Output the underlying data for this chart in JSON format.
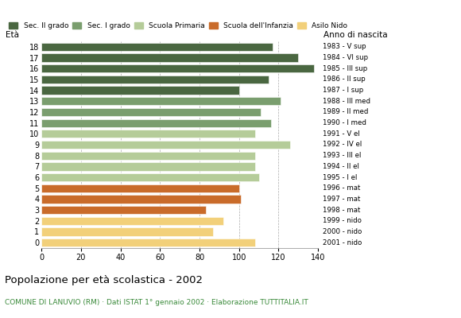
{
  "ages": [
    18,
    17,
    16,
    15,
    14,
    13,
    12,
    11,
    10,
    9,
    8,
    7,
    6,
    5,
    4,
    3,
    2,
    1,
    0
  ],
  "values": [
    117,
    130,
    138,
    115,
    100,
    121,
    111,
    116,
    108,
    126,
    108,
    108,
    110,
    100,
    101,
    83,
    92,
    87,
    108
  ],
  "anno_nascita": [
    "1983 - V sup",
    "1984 - VI sup",
    "1985 - III sup",
    "1986 - II sup",
    "1987 - I sup",
    "1988 - III med",
    "1989 - II med",
    "1990 - I med",
    "1991 - V el",
    "1992 - IV el",
    "1993 - III el",
    "1994 - II el",
    "1995 - I el",
    "1996 - mat",
    "1997 - mat",
    "1998 - mat",
    "1999 - nido",
    "2000 - nido",
    "2001 - nido"
  ],
  "colors": [
    "#4a6741",
    "#4a6741",
    "#4a6741",
    "#4a6741",
    "#4a6741",
    "#7a9e6e",
    "#7a9e6e",
    "#7a9e6e",
    "#b5cc99",
    "#b5cc99",
    "#b5cc99",
    "#b5cc99",
    "#b5cc99",
    "#c96b2a",
    "#c96b2a",
    "#c96b2a",
    "#f2d07a",
    "#f2d07a",
    "#f2d07a"
  ],
  "legend_labels": [
    "Sec. II grado",
    "Sec. I grado",
    "Scuola Primaria",
    "Scuola dell'Infanzia",
    "Asilo Nido"
  ],
  "legend_colors": [
    "#4a6741",
    "#7a9e6e",
    "#b5cc99",
    "#c96b2a",
    "#f2d07a"
  ],
  "title": "Popolazione per età scolastica - 2002",
  "subtitle": "COMUNE DI LANUVIO (RM) · Dati ISTAT 1° gennaio 2002 · Elaborazione TUTTITALIA.IT",
  "ylabel_eta": "Età",
  "ylabel_anno": "Anno di nascita",
  "xlim": [
    0,
    140
  ],
  "xticks": [
    0,
    20,
    40,
    60,
    80,
    100,
    120,
    140
  ],
  "grid_x": [
    20,
    40,
    60,
    80,
    100,
    120,
    140
  ],
  "background_color": "#ffffff"
}
